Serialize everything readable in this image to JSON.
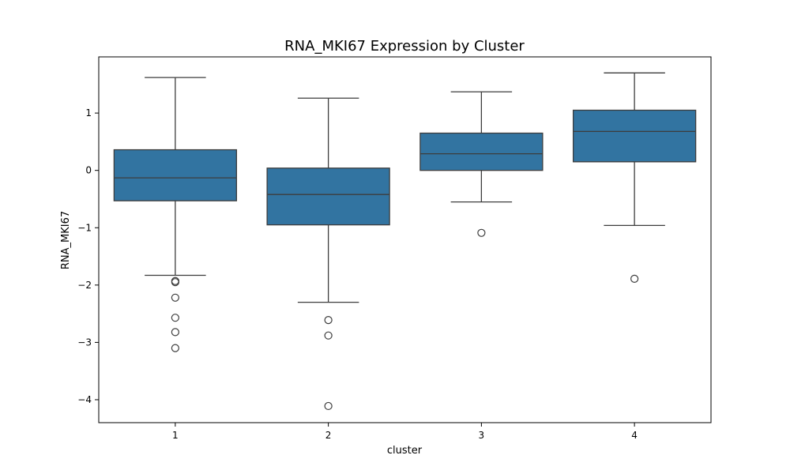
{
  "chart_data": {
    "type": "box",
    "title": "RNA_MKI67 Expression by Cluster",
    "xlabel": "cluster",
    "ylabel": "RNA_MKI67",
    "ylim": [
      -4.4,
      1.98
    ],
    "yticks": [
      -4,
      -3,
      -2,
      -1,
      0,
      1
    ],
    "ytick_labels": [
      "−4",
      "−3",
      "−2",
      "−1",
      "0",
      "1"
    ],
    "grid": false,
    "box_color": "#3274a1",
    "line_color": "#3d3d3d",
    "categories": [
      "1",
      "2",
      "3",
      "4"
    ],
    "boxes": [
      {
        "category": "1",
        "whisker_low": -1.83,
        "q1": -0.53,
        "median": -0.13,
        "q3": 0.36,
        "whisker_high": 1.62,
        "outliers": [
          -1.93,
          -1.95,
          -2.22,
          -2.57,
          -2.82,
          -3.1
        ]
      },
      {
        "category": "2",
        "whisker_low": -2.3,
        "q1": -0.95,
        "median": -0.42,
        "q3": 0.04,
        "whisker_high": 1.26,
        "outliers": [
          -2.61,
          -2.88,
          -4.11
        ]
      },
      {
        "category": "3",
        "whisker_low": -0.55,
        "q1": 0.0,
        "median": 0.29,
        "q3": 0.65,
        "whisker_high": 1.37,
        "outliers": [
          -1.09
        ]
      },
      {
        "category": "4",
        "whisker_low": -0.96,
        "q1": 0.15,
        "median": 0.68,
        "q3": 1.05,
        "whisker_high": 1.7,
        "outliers": [
          -1.89
        ]
      }
    ]
  }
}
